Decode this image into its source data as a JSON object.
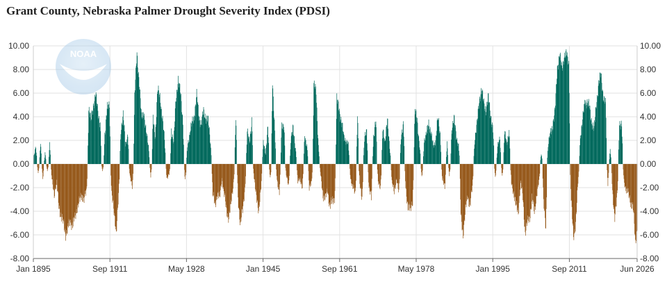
{
  "chart_data": {
    "type": "bar",
    "title": "Grant County, Nebraska Palmer Drought Severity Index (PDSI)",
    "xlabel": "",
    "ylabel": "",
    "ylim": [
      -8,
      10
    ],
    "yticks": [
      "10.00",
      "8.00",
      "6.00",
      "4.00",
      "2.00",
      "0.00",
      "-2.00",
      "-4.00",
      "-6.00",
      "-8.00"
    ],
    "xticks": [
      {
        "label": "Jan 1895",
        "year": 1895.0
      },
      {
        "label": "Sep 1911",
        "year": 1911.67
      },
      {
        "label": "May 1928",
        "year": 1928.33
      },
      {
        "label": "Jan 1945",
        "year": 1945.0
      },
      {
        "label": "Sep 1961",
        "year": 1961.67
      },
      {
        "label": "May 1978",
        "year": 1978.33
      },
      {
        "label": "Jan 1995",
        "year": 1995.0
      },
      {
        "label": "Sep 2011",
        "year": 2011.67
      },
      {
        "label": "Jun 2026",
        "year": 2026.42
      }
    ],
    "xrange": [
      1895.0,
      2026.42
    ],
    "grid": true,
    "colors": {
      "positive": "#00695c",
      "negative": "#96591b",
      "grid": "#e2e2e2",
      "axis": "#666666"
    },
    "logo": "noaa-logo",
    "series": [
      {
        "values_note_units": "PDSI by approximate date (year, value)",
        "points": [
          [
            1895.0,
            0.5
          ],
          [
            1895.5,
            1.4
          ],
          [
            1896.0,
            -0.8
          ],
          [
            1896.5,
            1.7
          ],
          [
            1897.0,
            -1.2
          ],
          [
            1897.5,
            0.9
          ],
          [
            1898.0,
            -0.6
          ],
          [
            1898.5,
            1.8
          ],
          [
            1899.0,
            -1.4
          ],
          [
            1899.5,
            -2.5
          ],
          [
            1900.0,
            -1.6
          ],
          [
            1900.5,
            -3.5
          ],
          [
            1901.0,
            -4.4
          ],
          [
            1901.5,
            -5.1
          ],
          [
            1902.0,
            -5.9
          ],
          [
            1902.5,
            -5.5
          ],
          [
            1903.0,
            -4.8
          ],
          [
            1903.5,
            -5.2
          ],
          [
            1904.0,
            -4.6
          ],
          [
            1904.5,
            -3.6
          ],
          [
            1905.0,
            -3.2
          ],
          [
            1905.5,
            -2.6
          ],
          [
            1906.0,
            -3.0
          ],
          [
            1906.5,
            -2.4
          ],
          [
            1907.0,
            4.8
          ],
          [
            1907.5,
            3.6
          ],
          [
            1908.0,
            5.0
          ],
          [
            1908.5,
            5.9
          ],
          [
            1909.0,
            4.4
          ],
          [
            1909.5,
            3.5
          ],
          [
            1910.0,
            -0.6
          ],
          [
            1910.5,
            2.6
          ],
          [
            1911.0,
            4.6
          ],
          [
            1911.5,
            5.0
          ],
          [
            1912.0,
            -2.5
          ],
          [
            1912.5,
            -4.2
          ],
          [
            1913.0,
            -5.6
          ],
          [
            1913.5,
            -2.8
          ],
          [
            1914.0,
            3.0
          ],
          [
            1914.5,
            4.2
          ],
          [
            1915.0,
            1.5
          ],
          [
            1915.5,
            2.6
          ],
          [
            1916.0,
            -1.2
          ],
          [
            1916.5,
            -1.8
          ],
          [
            1917.0,
            5.8
          ],
          [
            1917.5,
            9.3
          ],
          [
            1918.0,
            7.0
          ],
          [
            1918.5,
            3.8
          ],
          [
            1919.0,
            4.5
          ],
          [
            1919.5,
            2.6
          ],
          [
            1920.0,
            1.5
          ],
          [
            1920.5,
            -1.0
          ],
          [
            1921.0,
            3.8
          ],
          [
            1921.5,
            2.4
          ],
          [
            1922.0,
            6.2
          ],
          [
            1922.5,
            5.8
          ],
          [
            1923.0,
            4.0
          ],
          [
            1923.5,
            2.0
          ],
          [
            1924.0,
            -1.2
          ],
          [
            1924.5,
            -0.9
          ],
          [
            1925.0,
            3.0
          ],
          [
            1925.5,
            1.8
          ],
          [
            1926.0,
            5.5
          ],
          [
            1926.5,
            7.3
          ],
          [
            1927.0,
            5.8
          ],
          [
            1927.5,
            3.6
          ],
          [
            1928.0,
            -1.5
          ],
          [
            1928.5,
            1.6
          ],
          [
            1929.0,
            2.6
          ],
          [
            1929.5,
            3.4
          ],
          [
            1930.0,
            4.2
          ],
          [
            1930.5,
            5.8
          ],
          [
            1931.0,
            4.0
          ],
          [
            1931.5,
            3.4
          ],
          [
            1932.0,
            4.4
          ],
          [
            1932.5,
            4.0
          ],
          [
            1933.0,
            3.6
          ],
          [
            1933.5,
            1.8
          ],
          [
            1934.0,
            -2.5
          ],
          [
            1934.5,
            -3.6
          ],
          [
            1935.0,
            -2.4
          ],
          [
            1935.5,
            -3.0
          ],
          [
            1936.0,
            -1.2
          ],
          [
            1936.5,
            -2.6
          ],
          [
            1937.0,
            -4.0
          ],
          [
            1937.5,
            -4.5
          ],
          [
            1938.0,
            -3.4
          ],
          [
            1938.5,
            -1.6
          ],
          [
            1939.0,
            3.8
          ],
          [
            1939.5,
            -2.8
          ],
          [
            1940.0,
            -5.1
          ],
          [
            1940.5,
            -4.0
          ],
          [
            1941.0,
            -2.0
          ],
          [
            1941.5,
            2.6
          ],
          [
            1942.0,
            2.0
          ],
          [
            1942.5,
            3.6
          ],
          [
            1943.0,
            -1.2
          ],
          [
            1943.5,
            -2.5
          ],
          [
            1944.0,
            -4.4
          ],
          [
            1944.5,
            -1.8
          ],
          [
            1945.0,
            1.8
          ],
          [
            1945.5,
            0.8
          ],
          [
            1946.0,
            3.5
          ],
          [
            1946.5,
            -1.4
          ],
          [
            1947.0,
            7.2
          ],
          [
            1947.5,
            2.6
          ],
          [
            1948.0,
            -1.4
          ],
          [
            1948.5,
            -2.3
          ],
          [
            1949.0,
            3.0
          ],
          [
            1949.5,
            3.5
          ],
          [
            1950.0,
            -1.0
          ],
          [
            1950.5,
            -1.8
          ],
          [
            1951.0,
            2.0
          ],
          [
            1951.5,
            3.0
          ],
          [
            1952.0,
            1.4
          ],
          [
            1952.5,
            -1.6
          ],
          [
            1953.0,
            -1.2
          ],
          [
            1953.5,
            -2.0
          ],
          [
            1954.0,
            2.4
          ],
          [
            1954.5,
            1.6
          ],
          [
            1955.0,
            -2.2
          ],
          [
            1955.5,
            -1.4
          ],
          [
            1956.0,
            6.6
          ],
          [
            1956.5,
            6.2
          ],
          [
            1957.0,
            1.5
          ],
          [
            1957.5,
            -1.0
          ],
          [
            1958.0,
            -2.6
          ],
          [
            1958.5,
            -3.0
          ],
          [
            1959.0,
            -2.2
          ],
          [
            1959.5,
            -3.6
          ],
          [
            1960.0,
            -3.2
          ],
          [
            1960.5,
            -2.8
          ],
          [
            1961.0,
            5.4
          ],
          [
            1961.5,
            4.8
          ],
          [
            1962.0,
            3.5
          ],
          [
            1962.5,
            2.4
          ],
          [
            1963.0,
            2.0
          ],
          [
            1963.5,
            1.6
          ],
          [
            1964.0,
            -1.2
          ],
          [
            1964.5,
            -2.0
          ],
          [
            1965.0,
            -2.6
          ],
          [
            1965.5,
            4.4
          ],
          [
            1966.0,
            -1.8
          ],
          [
            1966.5,
            -2.8
          ],
          [
            1967.0,
            2.0
          ],
          [
            1967.5,
            2.8
          ],
          [
            1968.0,
            -2.0
          ],
          [
            1968.5,
            -3.0
          ],
          [
            1969.0,
            2.4
          ],
          [
            1969.5,
            3.6
          ],
          [
            1970.0,
            -1.4
          ],
          [
            1970.5,
            -2.0
          ],
          [
            1971.0,
            3.0
          ],
          [
            1971.5,
            2.0
          ],
          [
            1972.0,
            3.6
          ],
          [
            1972.5,
            1.5
          ],
          [
            1973.0,
            -1.6
          ],
          [
            1973.5,
            -2.4
          ],
          [
            1974.0,
            -1.2
          ],
          [
            1974.5,
            -2.6
          ],
          [
            1975.0,
            2.6
          ],
          [
            1975.5,
            3.2
          ],
          [
            1976.0,
            -2.0
          ],
          [
            1976.5,
            -3.6
          ],
          [
            1977.0,
            -4.0
          ],
          [
            1977.5,
            -3.0
          ],
          [
            1978.0,
            4.4
          ],
          [
            1978.5,
            3.8
          ],
          [
            1979.0,
            1.6
          ],
          [
            1979.5,
            -1.2
          ],
          [
            1980.0,
            2.0
          ],
          [
            1980.5,
            2.4
          ],
          [
            1981.0,
            3.6
          ],
          [
            1981.5,
            2.6
          ],
          [
            1982.0,
            1.5
          ],
          [
            1982.5,
            2.0
          ],
          [
            1983.0,
            3.8
          ],
          [
            1983.5,
            2.6
          ],
          [
            1984.0,
            -1.4
          ],
          [
            1984.5,
            -2.0
          ],
          [
            1985.0,
            1.8
          ],
          [
            1985.5,
            -1.0
          ],
          [
            1986.0,
            3.0
          ],
          [
            1986.5,
            3.8
          ],
          [
            1987.0,
            2.4
          ],
          [
            1987.5,
            1.6
          ],
          [
            1988.0,
            -4.4
          ],
          [
            1988.5,
            -5.9
          ],
          [
            1989.0,
            -4.0
          ],
          [
            1989.5,
            -2.6
          ],
          [
            1990.0,
            -3.6
          ],
          [
            1990.5,
            -2.0
          ],
          [
            1991.0,
            2.0
          ],
          [
            1991.5,
            3.2
          ],
          [
            1992.0,
            5.5
          ],
          [
            1992.5,
            6.2
          ],
          [
            1993.0,
            5.2
          ],
          [
            1993.5,
            4.6
          ],
          [
            1994.0,
            5.6
          ],
          [
            1994.5,
            4.2
          ],
          [
            1995.0,
            2.8
          ],
          [
            1995.5,
            -1.2
          ],
          [
            1996.0,
            1.6
          ],
          [
            1996.5,
            2.0
          ],
          [
            1997.0,
            -1.0
          ],
          [
            1997.5,
            2.6
          ],
          [
            1998.0,
            1.8
          ],
          [
            1998.5,
            2.8
          ],
          [
            1999.0,
            -1.6
          ],
          [
            1999.5,
            -2.4
          ],
          [
            2000.0,
            -3.6
          ],
          [
            2000.5,
            -4.0
          ],
          [
            2001.0,
            -1.6
          ],
          [
            2001.5,
            -2.8
          ],
          [
            2002.0,
            -5.8
          ],
          [
            2002.5,
            -5.0
          ],
          [
            2003.0,
            -4.4
          ],
          [
            2003.5,
            -3.0
          ],
          [
            2004.0,
            -4.0
          ],
          [
            2004.5,
            -2.6
          ],
          [
            2005.0,
            -1.6
          ],
          [
            2005.5,
            1.0
          ],
          [
            2006.0,
            -3.4
          ],
          [
            2006.5,
            -5.4
          ],
          [
            2007.0,
            1.6
          ],
          [
            2007.5,
            2.6
          ],
          [
            2008.0,
            3.4
          ],
          [
            2008.5,
            4.4
          ],
          [
            2009.0,
            8.2
          ],
          [
            2009.5,
            9.3
          ],
          [
            2010.0,
            8.0
          ],
          [
            2010.5,
            9.2
          ],
          [
            2011.0,
            9.2
          ],
          [
            2011.5,
            8.6
          ],
          [
            2012.0,
            -3.0
          ],
          [
            2012.5,
            -6.2
          ],
          [
            2013.0,
            -5.0
          ],
          [
            2013.5,
            -1.6
          ],
          [
            2014.0,
            2.4
          ],
          [
            2014.5,
            3.6
          ],
          [
            2015.0,
            5.4
          ],
          [
            2015.5,
            5.2
          ],
          [
            2016.0,
            4.8
          ],
          [
            2016.5,
            3.6
          ],
          [
            2017.0,
            2.8
          ],
          [
            2017.5,
            5.2
          ],
          [
            2018.0,
            6.8
          ],
          [
            2018.5,
            7.6
          ],
          [
            2019.0,
            5.8
          ],
          [
            2019.5,
            5.0
          ],
          [
            2020.0,
            -1.6
          ],
          [
            2020.5,
            1.2
          ],
          [
            2021.0,
            -2.4
          ],
          [
            2021.5,
            -4.4
          ],
          [
            2022.0,
            -3.0
          ],
          [
            2022.5,
            3.6
          ],
          [
            2023.0,
            3.2
          ],
          [
            2023.5,
            -1.4
          ],
          [
            2024.0,
            -2.2
          ],
          [
            2024.5,
            -2.6
          ],
          [
            2025.0,
            -3.2
          ],
          [
            2025.5,
            -3.8
          ],
          [
            2026.0,
            -6.6
          ],
          [
            2026.4,
            -5.2
          ]
        ]
      }
    ]
  }
}
